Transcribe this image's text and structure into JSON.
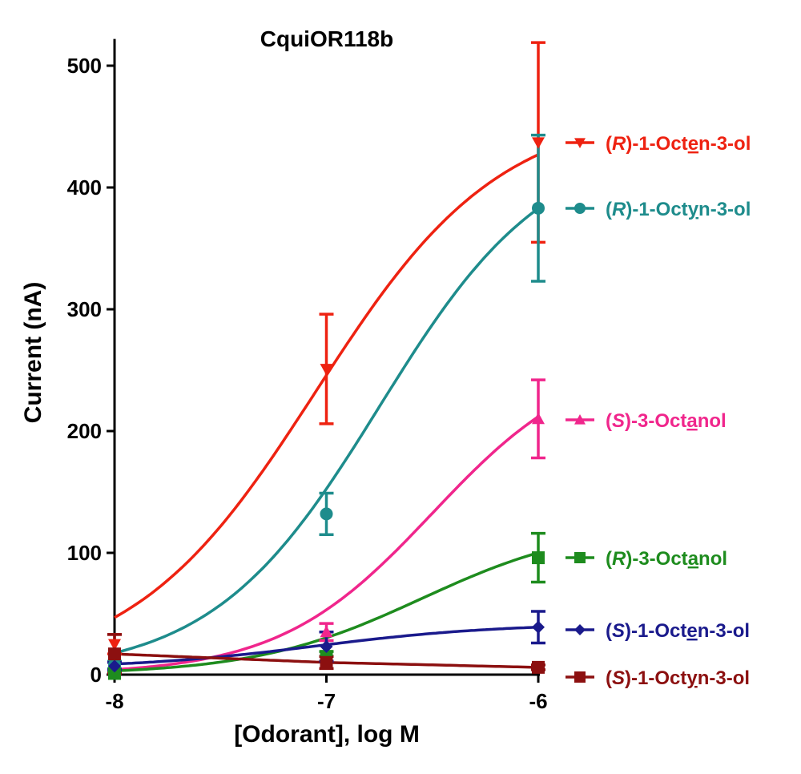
{
  "chart_data": {
    "type": "line",
    "title": "CquiOR118b",
    "xlabel": "[Odorant], log M",
    "ylabel": "Current (nA)",
    "xlim": [
      -8,
      -6
    ],
    "ylim": [
      0,
      520
    ],
    "xticks": [
      "-8",
      "-7",
      "-6"
    ],
    "yticks": [
      "0",
      "100",
      "200",
      "300",
      "400",
      "500"
    ],
    "legend_position": "right",
    "grid": false,
    "series": [
      {
        "name": "(R)-1-Octen-3-ol",
        "name_parts": [
          {
            "t": "("
          },
          {
            "t": "R",
            "i": true
          },
          {
            "t": ")-1-Oct"
          },
          {
            "t": "e",
            "u": true
          },
          {
            "t": "n-3-ol"
          }
        ],
        "color": "#ee2211",
        "marker": "triangle-down",
        "x": [
          -8,
          -7,
          -6
        ],
        "y": [
          25,
          251,
          437
        ],
        "err": [
          8,
          45,
          82
        ],
        "curve": {
          "bottom": 0,
          "top": 465,
          "logec50": -7.05,
          "hill": 1.0
        }
      },
      {
        "name": "(R)-1-Octyn-3-ol",
        "name_parts": [
          {
            "t": "("
          },
          {
            "t": "R",
            "i": true
          },
          {
            "t": ")-1-Oct"
          },
          {
            "t": "y",
            "u": true
          },
          {
            "t": "n-3-ol"
          }
        ],
        "color": "#1e8c8c",
        "marker": "circle",
        "x": [
          -8,
          -7,
          -6
        ],
        "y": [
          8,
          132,
          383
        ],
        "err": [
          3,
          17,
          60
        ],
        "curve": {
          "bottom": 0,
          "top": 440,
          "logec50": -6.75,
          "hill": 1.1
        }
      },
      {
        "name": "(S)-3-Octanol",
        "name_parts": [
          {
            "t": "("
          },
          {
            "t": "S",
            "i": true
          },
          {
            "t": ")-3-Oct"
          },
          {
            "t": "a",
            "u": true
          },
          {
            "t": "nol"
          }
        ],
        "color": "#f0268c",
        "marker": "triangle-up",
        "x": [
          -8,
          -7,
          -6
        ],
        "y": [
          2,
          35,
          210
        ],
        "err": [
          1,
          7,
          32
        ],
        "curve": {
          "bottom": 0,
          "top": 265,
          "logec50": -6.5,
          "hill": 1.2
        }
      },
      {
        "name": "(R)-3-Octanol",
        "name_parts": [
          {
            "t": "("
          },
          {
            "t": "R",
            "i": true
          },
          {
            "t": ")-3-Oct"
          },
          {
            "t": "a",
            "u": true
          },
          {
            "t": "nol"
          }
        ],
        "color": "#1e8c1e",
        "marker": "square",
        "x": [
          -8,
          -7,
          -6
        ],
        "y": [
          1,
          15,
          96
        ],
        "err": [
          1,
          4,
          20
        ],
        "curve": {
          "bottom": 0,
          "top": 125,
          "logec50": -6.55,
          "hill": 1.1
        }
      },
      {
        "name": "(S)-1-Octen-3-ol",
        "name_parts": [
          {
            "t": "("
          },
          {
            "t": "S",
            "i": true
          },
          {
            "t": ")-1-Oct"
          },
          {
            "t": "e",
            "u": true
          },
          {
            "t": "n-3-ol"
          }
        ],
        "color": "#1a1a8c",
        "marker": "diamond",
        "x": [
          -8,
          -7,
          -6
        ],
        "y": [
          7,
          23,
          39
        ],
        "err": [
          3,
          12,
          13
        ],
        "curve": {
          "bottom": 5,
          "top": 42,
          "logec50": -7.05,
          "hill": 1.0
        }
      },
      {
        "name": "(S)-1-Octyn-3-ol",
        "name_parts": [
          {
            "t": "("
          },
          {
            "t": "S",
            "i": true
          },
          {
            "t": ")-1-Oct"
          },
          {
            "t": "y",
            "u": true
          },
          {
            "t": "n-3-ol"
          }
        ],
        "color": "#8c1010",
        "marker": "square",
        "x": [
          -8,
          -7,
          -6
        ],
        "y": [
          17,
          10,
          6
        ],
        "err": [
          16,
          5,
          2
        ],
        "curve": {
          "linear": true
        }
      }
    ]
  }
}
